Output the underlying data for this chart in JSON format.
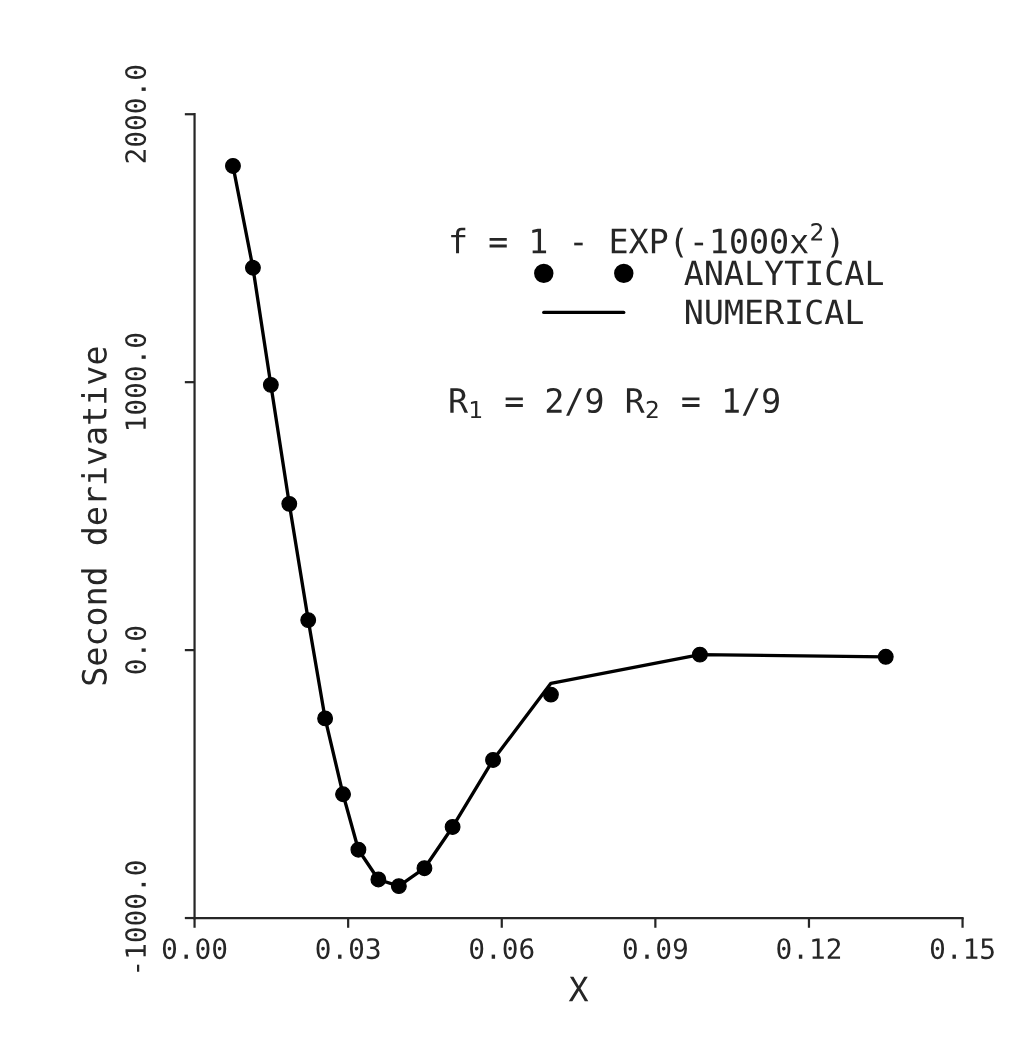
{
  "chart_data": {
    "type": "scatter",
    "xlabel": "X",
    "ylabel": "Second derivative",
    "annotations": [
      "f = 1 - EXP(-1000x$^{2}$)",
      "R$_{1}$ = 2/9 R$_{2}$ = 1/9"
    ],
    "series": [
      {
        "name": "ANALYTICAL",
        "color": "#000000",
        "marker": "circle",
        "x": [
          0.0075,
          0.0114,
          0.0149,
          0.0185,
          0.0222,
          0.0255,
          0.029,
          0.032,
          0.0359,
          0.0399,
          0.0449,
          0.0504,
          0.0583,
          0.0696,
          0.0987,
          0.135
        ],
        "values": [
          1807,
          1427,
          990,
          546,
          112,
          -255,
          -538,
          -745,
          -856,
          -881,
          -814,
          -660,
          -410,
          -166,
          -17,
          -25
        ]
      },
      {
        "name": "NUMERICAL",
        "type": "line",
        "color": "#000000",
        "line_style": "solid",
        "x": [
          0.0075,
          0.0114,
          0.0149,
          0.0185,
          0.0222,
          0.0255,
          0.029,
          0.032,
          0.0359,
          0.0399,
          0.0449,
          0.0504,
          0.0583,
          0.0696,
          0.0987,
          0.135
        ],
        "values": [
          1807,
          1427,
          990,
          546,
          112,
          -255,
          -538,
          -745,
          -856,
          -881,
          -814,
          -660,
          -410,
          -124,
          -17,
          -25
        ]
      }
    ],
    "xlim": [
      0,
      0.15
    ],
    "xticks": [
      {
        "value": 0,
        "label": "0.00"
      },
      {
        "value": 0.03,
        "label": "0.03"
      },
      {
        "value": 0.06,
        "label": "0.06"
      },
      {
        "value": 0.09,
        "label": "0.09"
      },
      {
        "value": 0.12,
        "label": "0.12"
      },
      {
        "value": 0.15,
        "label": "0.15"
      }
    ],
    "ylim": [
      -1000,
      2000
    ],
    "yticks": [
      {
        "value": -1000,
        "label": "-1000.0"
      },
      {
        "value": 0,
        "label": "0.0"
      },
      {
        "value": 1000,
        "label": "1000.0"
      },
      {
        "value": 2000,
        "label": "2000.0"
      }
    ],
    "grid": false,
    "legend": "top right"
  }
}
